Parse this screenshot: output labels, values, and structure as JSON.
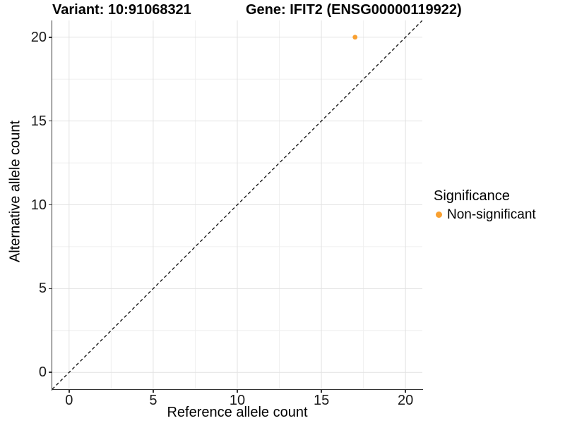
{
  "titles": {
    "variant": "Variant: 10:91068321",
    "gene": "Gene: IFIT2 (ENSG00000119922)"
  },
  "chart_data": {
    "type": "scatter",
    "title": "Variant: 10:91068321   Gene: IFIT2 (ENSG00000119922)",
    "xlabel": "Reference allele count",
    "ylabel": "Alternative allele count",
    "xlim": [
      -1,
      21
    ],
    "ylim": [
      -1,
      21
    ],
    "x_ticks": [
      0,
      5,
      10,
      15,
      20
    ],
    "y_ticks": [
      0,
      5,
      10,
      15,
      20
    ],
    "minor_ticks": [
      2.5,
      7.5,
      12.5,
      17.5
    ],
    "grid": "major+minor",
    "reference_line": {
      "type": "identity",
      "style": "dashed",
      "from": [
        -1,
        -1
      ],
      "to": [
        21,
        21
      ]
    },
    "series": [
      {
        "name": "Non-significant",
        "color": "#F9A030",
        "points": [
          [
            17,
            20
          ]
        ],
        "point_radius": 3.4
      }
    ],
    "legend": {
      "title": "Significance",
      "position": "right",
      "entries": [
        {
          "label": "Non-significant",
          "color": "#F9A030",
          "marker": "circle"
        }
      ]
    }
  },
  "colors": {
    "background": "#ffffff",
    "axis": "#333333",
    "grid_major": "#e2e2e2",
    "grid_minor": "#efefef",
    "tick_text": "#1a1a1a",
    "title_text": "#000000",
    "ref_line": "#1a1a1a"
  }
}
